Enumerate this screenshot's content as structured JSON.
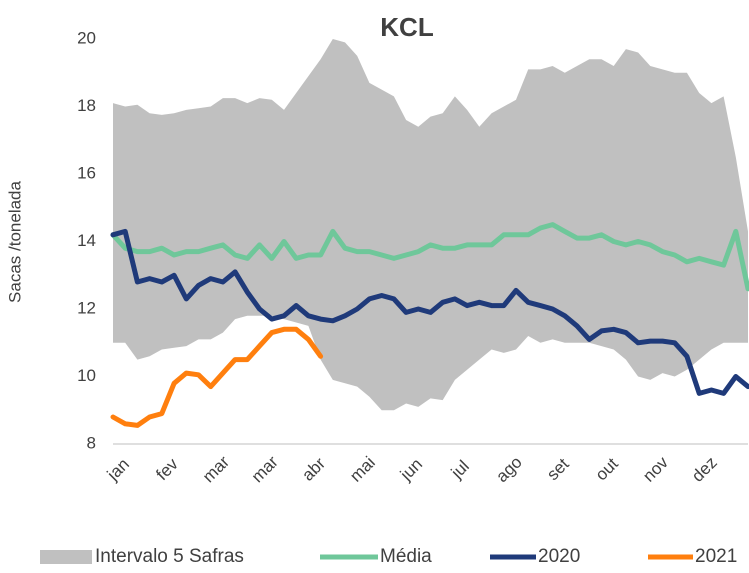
{
  "chart_data": {
    "type": "line",
    "title": "KCL",
    "y_label": "Sacas /tonelada",
    "categories": [
      "jan",
      null,
      null,
      null,
      "fev",
      null,
      null,
      null,
      "mar",
      null,
      null,
      null,
      "mar",
      null,
      null,
      null,
      "abr",
      null,
      null,
      null,
      "mai",
      null,
      null,
      null,
      "jun",
      null,
      null,
      null,
      "jul",
      null,
      null,
      null,
      "ago",
      null,
      null,
      null,
      "set",
      null,
      null,
      null,
      "out",
      null,
      null,
      null,
      "nov",
      null,
      null,
      null,
      "dez",
      null,
      null,
      null,
      null
    ],
    "ylim": [
      8,
      20
    ],
    "yticks": [
      8,
      10,
      12,
      14,
      16,
      18,
      20
    ],
    "series": [
      {
        "name": "Intervalo 5 Safras",
        "color": "#c0c0c0",
        "high": [
          18.1,
          18.0,
          18.05,
          17.8,
          17.75,
          17.8,
          17.9,
          17.95,
          18.0,
          18.25,
          18.25,
          18.1,
          18.25,
          18.2,
          17.9,
          18.4,
          18.9,
          19.4,
          20.0,
          19.9,
          19.5,
          18.7,
          18.5,
          18.3,
          17.6,
          17.4,
          17.7,
          17.8,
          18.3,
          17.9,
          17.4,
          17.8,
          18.0,
          18.2,
          19.1,
          19.1,
          19.2,
          19.0,
          19.2,
          19.4,
          19.4,
          19.2,
          19.7,
          19.6,
          19.2,
          19.1,
          19.0,
          19.0,
          18.4,
          18.1,
          18.3,
          16.5,
          14.3
        ],
        "low": [
          11.0,
          11.0,
          10.5,
          10.6,
          10.8,
          10.85,
          10.9,
          11.1,
          11.1,
          11.3,
          11.7,
          11.8,
          11.8,
          11.8,
          11.7,
          11.6,
          11.5,
          10.5,
          9.9,
          9.8,
          9.7,
          9.4,
          9.0,
          9.0,
          9.2,
          9.1,
          9.35,
          9.3,
          9.9,
          10.2,
          10.5,
          10.8,
          10.7,
          10.8,
          11.2,
          11.0,
          11.1,
          11.0,
          11.0,
          11.0,
          10.9,
          10.8,
          10.5,
          10.0,
          9.9,
          10.1,
          10.0,
          10.2,
          10.5,
          10.8,
          11.0,
          11.0,
          11.0
        ]
      },
      {
        "name": "Média",
        "color": "#6fc79a",
        "values": [
          14.2,
          13.8,
          13.7,
          13.7,
          13.8,
          13.6,
          13.7,
          13.7,
          13.8,
          13.9,
          13.6,
          13.5,
          13.9,
          13.5,
          14.0,
          13.5,
          13.6,
          13.6,
          14.3,
          13.8,
          13.7,
          13.7,
          13.6,
          13.5,
          13.6,
          13.7,
          13.9,
          13.8,
          13.8,
          13.9,
          13.9,
          13.9,
          14.2,
          14.2,
          14.2,
          14.4,
          14.5,
          14.3,
          14.1,
          14.1,
          14.2,
          14.0,
          13.9,
          14.0,
          13.9,
          13.7,
          13.6,
          13.4,
          13.5,
          13.4,
          13.3,
          14.3,
          12.6
        ]
      },
      {
        "name": "2020",
        "color": "#1f3a7a",
        "values": [
          14.2,
          14.3,
          12.8,
          12.9,
          12.8,
          13.0,
          12.3,
          12.7,
          12.9,
          12.8,
          13.1,
          12.5,
          12.0,
          11.7,
          11.8,
          12.1,
          11.8,
          11.7,
          11.65,
          11.8,
          12.0,
          12.3,
          12.4,
          12.3,
          11.9,
          12.0,
          11.9,
          12.2,
          12.3,
          12.1,
          12.2,
          12.1,
          12.1,
          12.55,
          12.2,
          12.1,
          12.0,
          11.8,
          11.5,
          11.1,
          11.35,
          11.4,
          11.3,
          11.0,
          11.05,
          11.05,
          11.0,
          10.6,
          9.5,
          9.6,
          9.5,
          10.0,
          9.7
        ]
      },
      {
        "name": "2021",
        "color": "#ff7f0e",
        "values": [
          8.8,
          8.6,
          8.55,
          8.8,
          8.9,
          9.8,
          10.1,
          10.05,
          9.7,
          10.1,
          10.5,
          10.5,
          10.9,
          11.3,
          11.4,
          11.4,
          11.1,
          10.6,
          null,
          null,
          null,
          null,
          null,
          null,
          null,
          null,
          null,
          null,
          null,
          null,
          null,
          null,
          null,
          null,
          null,
          null,
          null,
          null,
          null,
          null,
          null,
          null,
          null,
          null,
          null,
          null,
          null,
          null,
          null,
          null,
          null,
          null,
          null
        ]
      }
    ]
  }
}
